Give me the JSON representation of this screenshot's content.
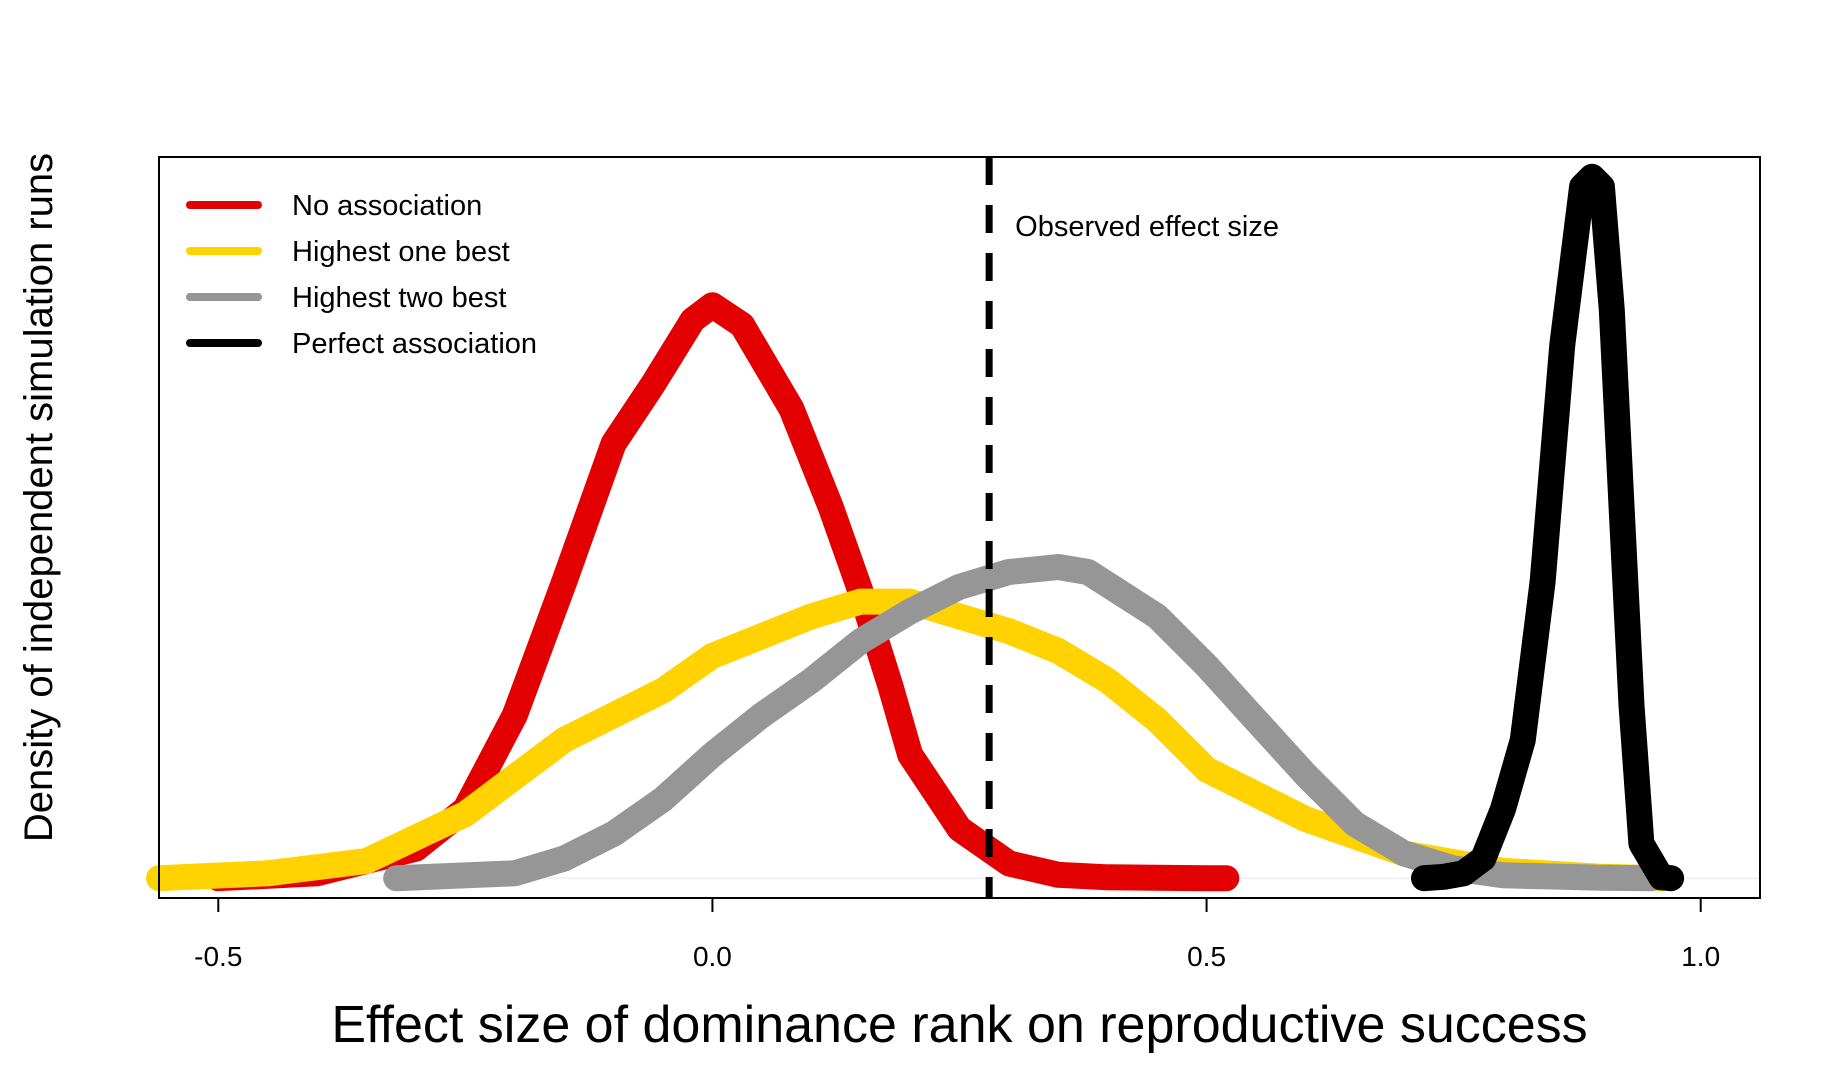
{
  "chart_data": {
    "type": "line",
    "title": "",
    "xlabel": "Effect size of dominance rank on reproductive success",
    "ylabel": "Density of independent simulation runs",
    "xlim": [
      -0.56,
      1.06
    ],
    "ylim": [
      -0.4,
      14.6
    ],
    "xticks": [
      -0.5,
      0.0,
      0.5,
      1.0
    ],
    "xtick_labels": [
      "-0.5",
      "0.0",
      "0.5",
      "1.0"
    ],
    "yticks": [],
    "grid": false,
    "legend": {
      "position": "top-left"
    },
    "reference_line": {
      "x": 0.28,
      "label": "Observed effect size",
      "style": "dashed",
      "color": "#000000"
    },
    "series": [
      {
        "name": "No association",
        "color": "#e30000",
        "x": [
          -0.5,
          -0.4,
          -0.3,
          -0.25,
          -0.2,
          -0.15,
          -0.1,
          -0.06,
          -0.02,
          0.0,
          0.03,
          0.08,
          0.12,
          0.15,
          0.18,
          0.2,
          0.25,
          0.3,
          0.35,
          0.4,
          0.5,
          0.52
        ],
        "y": [
          0.0,
          0.1,
          0.6,
          1.4,
          3.3,
          6.0,
          8.8,
          10.0,
          11.3,
          11.6,
          11.2,
          9.5,
          7.5,
          5.8,
          3.9,
          2.5,
          1.0,
          0.3,
          0.07,
          0.02,
          0.0,
          0.0
        ]
      },
      {
        "name": "Highest one best",
        "color": "#ffd200",
        "x": [
          -0.56,
          -0.45,
          -0.35,
          -0.25,
          -0.15,
          -0.05,
          0.0,
          0.05,
          0.1,
          0.15,
          0.2,
          0.25,
          0.3,
          0.35,
          0.4,
          0.45,
          0.5,
          0.6,
          0.7,
          0.8,
          0.9,
          0.96
        ],
        "y": [
          0.0,
          0.1,
          0.35,
          1.3,
          2.8,
          3.8,
          4.5,
          4.9,
          5.3,
          5.6,
          5.6,
          5.3,
          5.0,
          4.6,
          4.0,
          3.2,
          2.2,
          1.2,
          0.5,
          0.15,
          0.03,
          0.0
        ]
      },
      {
        "name": "Highest two best",
        "color": "#969696",
        "x": [
          -0.32,
          -0.2,
          -0.15,
          -0.1,
          -0.05,
          0.0,
          0.05,
          0.1,
          0.15,
          0.2,
          0.25,
          0.3,
          0.35,
          0.38,
          0.45,
          0.5,
          0.55,
          0.6,
          0.65,
          0.7,
          0.75,
          0.8,
          0.9,
          0.95
        ],
        "y": [
          0.0,
          0.1,
          0.4,
          0.9,
          1.6,
          2.5,
          3.3,
          4.0,
          4.8,
          5.4,
          5.9,
          6.2,
          6.3,
          6.2,
          5.3,
          4.3,
          3.2,
          2.1,
          1.1,
          0.5,
          0.2,
          0.06,
          0.01,
          0.0
        ]
      },
      {
        "name": "Perfect association",
        "color": "#000000",
        "x": [
          0.72,
          0.74,
          0.76,
          0.78,
          0.8,
          0.82,
          0.84,
          0.86,
          0.88,
          0.89,
          0.9,
          0.91,
          0.92,
          0.93,
          0.94,
          0.96,
          0.97
        ],
        "y": [
          0.0,
          0.03,
          0.1,
          0.4,
          1.4,
          2.8,
          6.0,
          10.8,
          14.0,
          14.2,
          14.0,
          11.5,
          7.5,
          3.5,
          0.7,
          0.02,
          0.0
        ]
      }
    ]
  }
}
